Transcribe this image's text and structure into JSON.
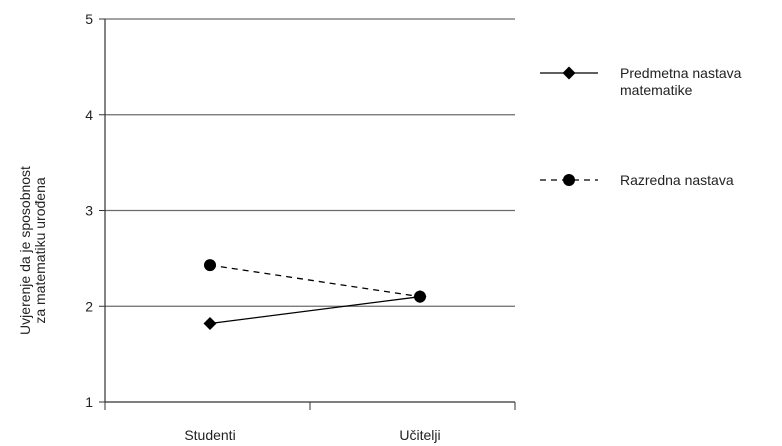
{
  "chart_data": {
    "type": "line",
    "categories": [
      "Studenti",
      "Učitelji"
    ],
    "ylim": [
      1,
      5
    ],
    "yticks": [
      1,
      2,
      3,
      4,
      5
    ],
    "ylabel_lines": [
      "Uvjerenje da je sposobnost",
      "za matematiku urođena"
    ],
    "xlabel": "",
    "grid": true,
    "legend_position": "right",
    "series": [
      {
        "name": "Predmetna nastava matematike",
        "name_lines": [
          "Predmetna nastava",
          "matematike"
        ],
        "values": [
          1.82,
          2.1
        ],
        "marker": "diamond",
        "dash": "solid",
        "color": "#000000"
      },
      {
        "name": "Razredna nastava",
        "name_lines": [
          "Razredna nastava"
        ],
        "values": [
          2.43,
          2.1
        ],
        "marker": "circle",
        "dash": "dashed",
        "color": "#000000"
      }
    ]
  }
}
